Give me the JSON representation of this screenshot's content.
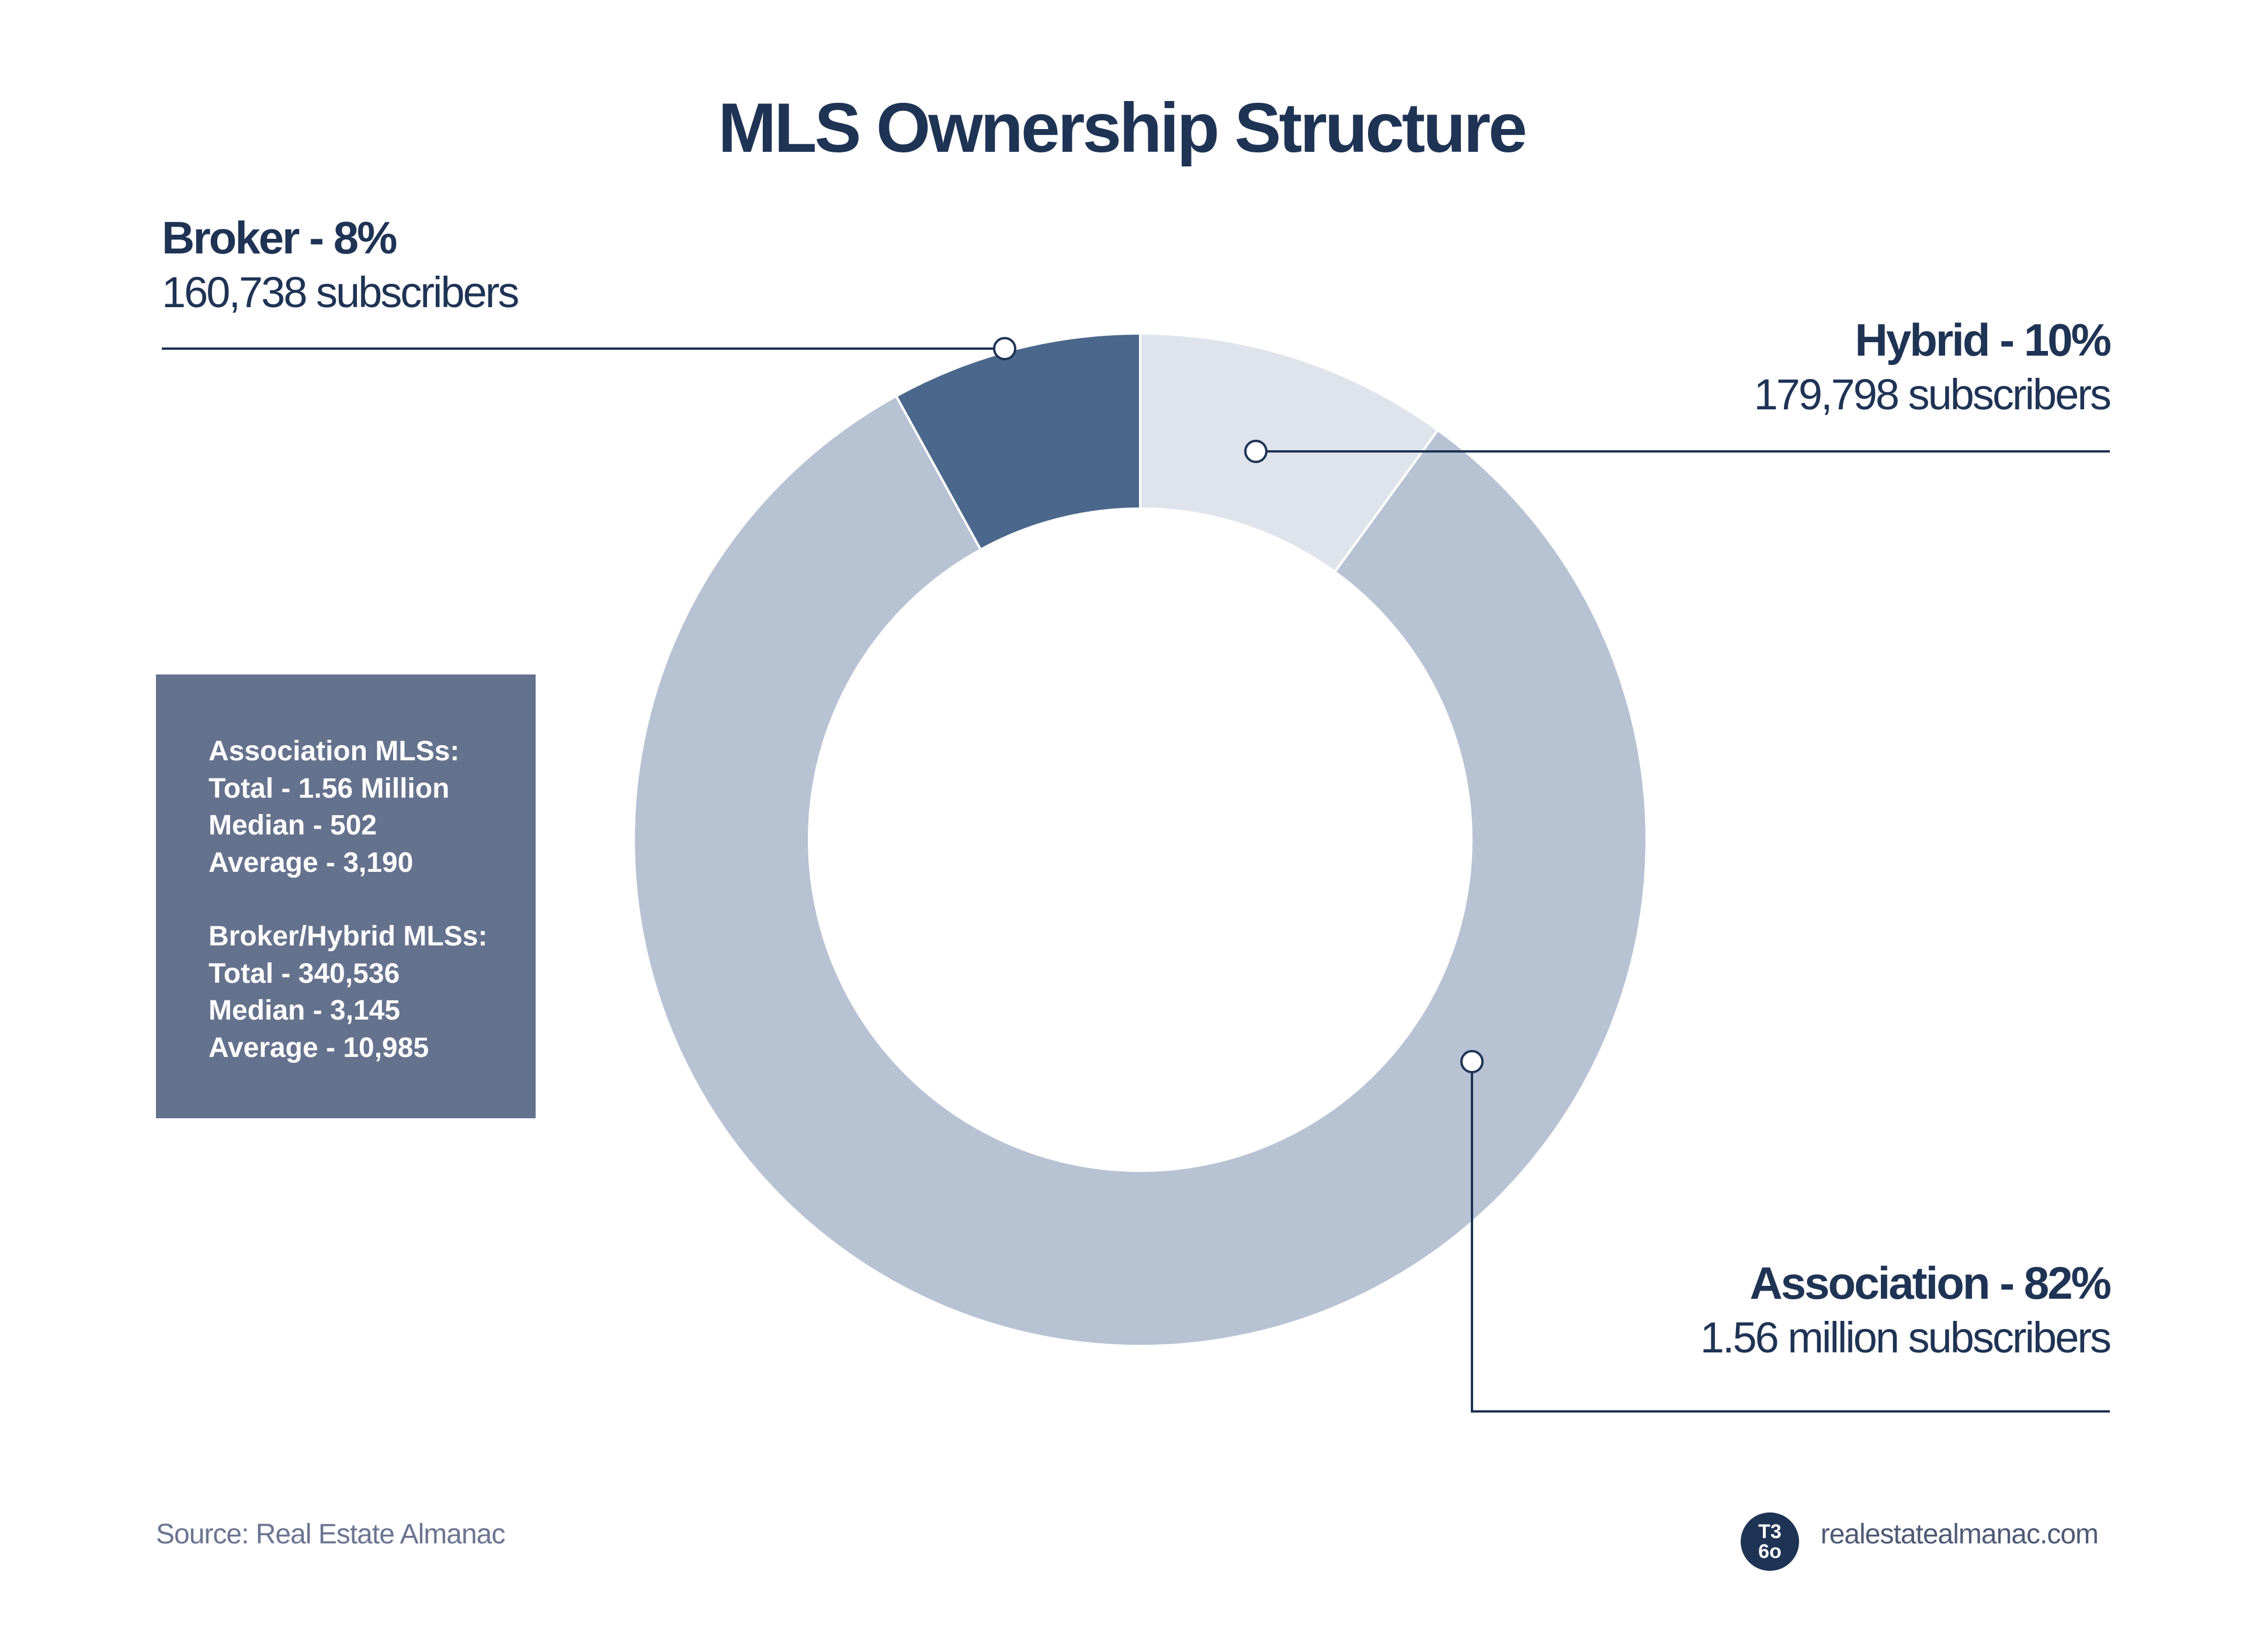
{
  "chart_data": {
    "type": "pie",
    "variant": "donut",
    "title": "MLS Ownership Structure",
    "slices": [
      {
        "key": "hybrid",
        "label": "Hybrid - 10%",
        "value": 10,
        "subscribers": "179,798 subscribers",
        "color": "#dfe4ec"
      },
      {
        "key": "association",
        "label": "Association - 82%",
        "value": 82,
        "subscribers": "1.56 million subscribers",
        "color": "#b7c2d3"
      },
      {
        "key": "broker",
        "label": "Broker - 8%",
        "value": 8,
        "subscribers": "160,738 subscribers",
        "color": "#4b678c"
      }
    ],
    "legend": "callout-labels"
  },
  "stats_box": {
    "association": [
      "Association MLSs:",
      "Total - 1.56 Million",
      "Median - 502",
      "Average - 3,190"
    ],
    "broker_hybrid": [
      "Broker/Hybrid MLSs:",
      "Total - 340,536",
      "Median - 3,145",
      "Average - 10,985"
    ],
    "background_color": "#65728d"
  },
  "footer": {
    "source": "Source: Real Estate Almanac",
    "site": "realestatealmanac.com",
    "logo_top": "T3",
    "logo_bottom": "6o"
  }
}
